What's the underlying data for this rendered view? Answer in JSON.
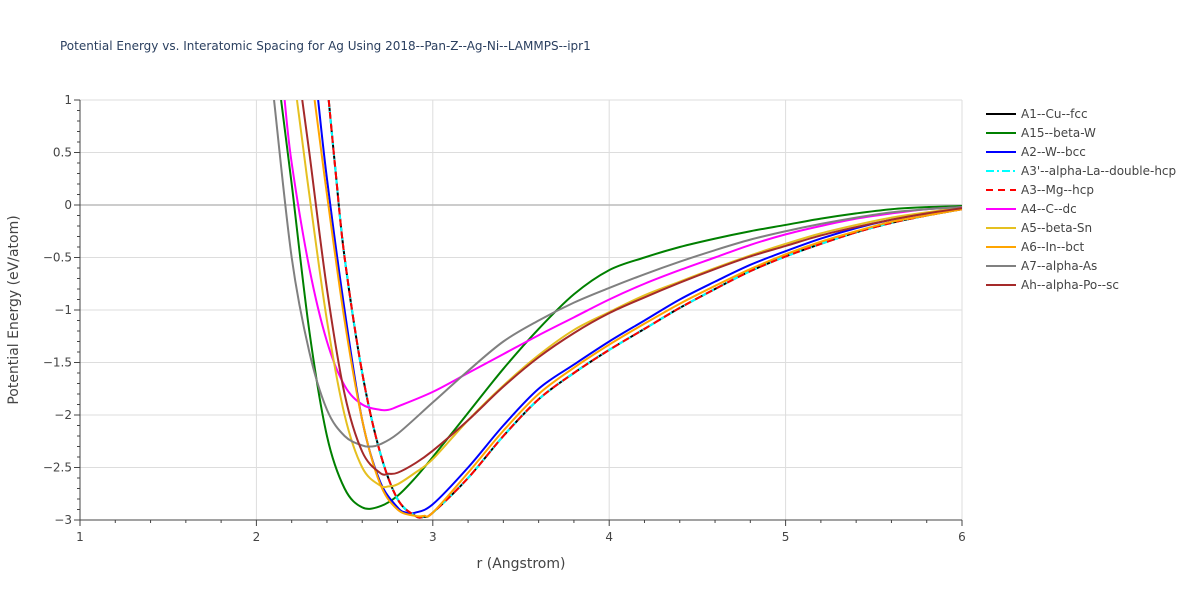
{
  "chart_data": {
    "type": "line",
    "title": "Potential Energy vs. Interatomic Spacing for Ag Using 2018--Pan-Z--Ag-Ni--LAMMPS--ipr1",
    "xlabel": "r (Angstrom)",
    "ylabel": "Potential Energy (eV/atom)",
    "xlim": [
      1,
      6
    ],
    "ylim": [
      -3,
      1
    ],
    "xticks": [
      1,
      2,
      3,
      4,
      5,
      6
    ],
    "xtick_labels": [
      "1",
      "2",
      "3",
      "4",
      "5",
      "6"
    ],
    "yticks": [
      1,
      0.5,
      0,
      -0.5,
      -1,
      -1.5,
      -2,
      -2.5,
      -3
    ],
    "ytick_labels": [
      "1",
      "0.5",
      "0",
      "−0.5",
      "−1",
      "−1.5",
      "−2",
      "−2.5",
      "−3"
    ],
    "grid": true,
    "legend_position": "right",
    "series": [
      {
        "name": "A1--Cu--fcc",
        "color": "#000000",
        "dash": "solid",
        "x": [
          2.41,
          2.45,
          2.5,
          2.6,
          2.7,
          2.8,
          2.9,
          2.95,
          3.0,
          3.2,
          3.4,
          3.6,
          3.8,
          4.0,
          4.2,
          4.4,
          4.6,
          4.8,
          5.0,
          5.2,
          5.4,
          5.6,
          5.8,
          6.0
        ],
        "y": [
          1.0,
          0.3,
          -0.5,
          -1.6,
          -2.35,
          -2.8,
          -2.96,
          -2.97,
          -2.93,
          -2.6,
          -2.2,
          -1.85,
          -1.6,
          -1.38,
          -1.18,
          -0.98,
          -0.8,
          -0.63,
          -0.49,
          -0.37,
          -0.26,
          -0.17,
          -0.1,
          -0.04
        ]
      },
      {
        "name": "A15--beta-W",
        "color": "#008000",
        "dash": "solid",
        "x": [
          2.14,
          2.2,
          2.3,
          2.4,
          2.5,
          2.6,
          2.7,
          2.8,
          2.9,
          3.0,
          3.2,
          3.4,
          3.6,
          3.8,
          4.0,
          4.2,
          4.4,
          4.6,
          4.8,
          5.0,
          5.2,
          5.4,
          5.6,
          5.8,
          6.0
        ],
        "y": [
          1.0,
          0.2,
          -1.2,
          -2.2,
          -2.7,
          -2.88,
          -2.87,
          -2.77,
          -2.6,
          -2.4,
          -1.98,
          -1.56,
          -1.18,
          -0.85,
          -0.62,
          -0.5,
          -0.4,
          -0.32,
          -0.25,
          -0.19,
          -0.13,
          -0.08,
          -0.04,
          -0.02,
          -0.01
        ]
      },
      {
        "name": "A2--W--bcc",
        "color": "#0000ff",
        "dash": "solid",
        "x": [
          2.35,
          2.4,
          2.5,
          2.6,
          2.7,
          2.8,
          2.85,
          2.9,
          3.0,
          3.2,
          3.4,
          3.6,
          3.8,
          4.0,
          4.2,
          4.4,
          4.6,
          4.8,
          5.0,
          5.2,
          5.4,
          5.6,
          5.8,
          6.0
        ],
        "y": [
          1.0,
          0.25,
          -1.0,
          -2.05,
          -2.63,
          -2.88,
          -2.93,
          -2.93,
          -2.85,
          -2.5,
          -2.1,
          -1.75,
          -1.52,
          -1.3,
          -1.1,
          -0.9,
          -0.73,
          -0.57,
          -0.44,
          -0.32,
          -0.22,
          -0.14,
          -0.08,
          -0.03
        ]
      },
      {
        "name": "A3'--alpha-La--double-hcp",
        "color": "#00ffff",
        "dash": "dashdot",
        "x": [
          2.41,
          2.45,
          2.5,
          2.6,
          2.7,
          2.8,
          2.9,
          2.95,
          3.0,
          3.2,
          3.4,
          3.6,
          3.8,
          4.0,
          4.2,
          4.4,
          4.6,
          4.8,
          5.0,
          5.2,
          5.4,
          5.6,
          5.8,
          6.0
        ],
        "y": [
          1.0,
          0.3,
          -0.5,
          -1.6,
          -2.35,
          -2.8,
          -2.96,
          -2.97,
          -2.93,
          -2.6,
          -2.2,
          -1.85,
          -1.6,
          -1.38,
          -1.18,
          -0.98,
          -0.8,
          -0.63,
          -0.49,
          -0.37,
          -0.26,
          -0.17,
          -0.1,
          -0.04
        ]
      },
      {
        "name": "A3--Mg--hcp",
        "color": "#ff0000",
        "dash": "dash",
        "x": [
          2.41,
          2.45,
          2.5,
          2.6,
          2.7,
          2.8,
          2.9,
          2.95,
          3.0,
          3.2,
          3.4,
          3.6,
          3.8,
          4.0,
          4.2,
          4.4,
          4.6,
          4.8,
          5.0,
          5.2,
          5.4,
          5.6,
          5.8,
          6.0
        ],
        "y": [
          1.0,
          0.3,
          -0.5,
          -1.6,
          -2.35,
          -2.8,
          -2.96,
          -2.97,
          -2.93,
          -2.6,
          -2.2,
          -1.85,
          -1.6,
          -1.38,
          -1.18,
          -0.98,
          -0.8,
          -0.63,
          -0.49,
          -0.37,
          -0.26,
          -0.17,
          -0.1,
          -0.04
        ]
      },
      {
        "name": "A4--C--dc",
        "color": "#ff00ff",
        "dash": "solid",
        "x": [
          2.16,
          2.2,
          2.3,
          2.4,
          2.5,
          2.6,
          2.7,
          2.75,
          2.8,
          3.0,
          3.2,
          3.4,
          3.6,
          3.8,
          4.0,
          4.2,
          4.4,
          4.6,
          4.8,
          5.0,
          5.2,
          5.4,
          5.6,
          5.8,
          6.0
        ],
        "y": [
          1.0,
          0.4,
          -0.6,
          -1.3,
          -1.72,
          -1.9,
          -1.95,
          -1.95,
          -1.92,
          -1.78,
          -1.6,
          -1.42,
          -1.24,
          -1.07,
          -0.9,
          -0.75,
          -0.62,
          -0.5,
          -0.38,
          -0.28,
          -0.2,
          -0.13,
          -0.08,
          -0.04,
          -0.02
        ]
      },
      {
        "name": "A5--beta-Sn",
        "color": "#e5c020",
        "dash": "solid",
        "x": [
          2.23,
          2.3,
          2.4,
          2.5,
          2.6,
          2.7,
          2.75,
          2.8,
          2.9,
          3.0,
          3.2,
          3.4,
          3.6,
          3.8,
          4.0,
          4.2,
          4.4,
          4.6,
          4.8,
          5.0,
          5.2,
          5.4,
          5.6,
          5.8,
          6.0
        ],
        "y": [
          1.0,
          0.1,
          -1.1,
          -2.0,
          -2.5,
          -2.67,
          -2.68,
          -2.66,
          -2.55,
          -2.42,
          -2.05,
          -1.72,
          -1.43,
          -1.19,
          -1.02,
          -0.86,
          -0.73,
          -0.6,
          -0.48,
          -0.37,
          -0.27,
          -0.19,
          -0.12,
          -0.07,
          -0.03
        ]
      },
      {
        "name": "A6--In--bct",
        "color": "#ffa500",
        "dash": "solid",
        "x": [
          2.33,
          2.4,
          2.5,
          2.6,
          2.7,
          2.8,
          2.9,
          2.95,
          3.0,
          3.2,
          3.4,
          3.6,
          3.8,
          4.0,
          4.2,
          4.4,
          4.6,
          4.8,
          5.0,
          5.2,
          5.4,
          5.6,
          5.8,
          6.0
        ],
        "y": [
          1.0,
          0.1,
          -1.1,
          -2.05,
          -2.65,
          -2.9,
          -2.96,
          -2.96,
          -2.93,
          -2.55,
          -2.15,
          -1.8,
          -1.55,
          -1.33,
          -1.13,
          -0.94,
          -0.77,
          -0.61,
          -0.47,
          -0.35,
          -0.25,
          -0.16,
          -0.1,
          -0.04
        ]
      },
      {
        "name": "A7--alpha-As",
        "color": "#808080",
        "dash": "solid",
        "x": [
          2.1,
          2.2,
          2.3,
          2.4,
          2.5,
          2.6,
          2.65,
          2.7,
          2.8,
          3.0,
          3.2,
          3.4,
          3.6,
          3.8,
          4.0,
          4.2,
          4.4,
          4.6,
          4.8,
          5.0,
          5.2,
          5.4,
          5.6,
          5.8,
          6.0
        ],
        "y": [
          1.0,
          -0.5,
          -1.4,
          -1.95,
          -2.2,
          -2.29,
          -2.3,
          -2.28,
          -2.18,
          -1.88,
          -1.58,
          -1.3,
          -1.1,
          -0.93,
          -0.79,
          -0.66,
          -0.54,
          -0.43,
          -0.33,
          -0.25,
          -0.18,
          -0.12,
          -0.07,
          -0.04,
          -0.02
        ]
      },
      {
        "name": "Ah--alpha-Po--sc",
        "color": "#a52a2a",
        "dash": "solid",
        "x": [
          2.26,
          2.3,
          2.4,
          2.5,
          2.6,
          2.7,
          2.75,
          2.8,
          2.9,
          3.0,
          3.2,
          3.4,
          3.6,
          3.8,
          4.0,
          4.2,
          4.4,
          4.6,
          4.8,
          5.0,
          5.2,
          5.4,
          5.6,
          5.8,
          6.0
        ],
        "y": [
          1.0,
          0.5,
          -0.8,
          -1.8,
          -2.35,
          -2.55,
          -2.56,
          -2.55,
          -2.46,
          -2.34,
          -2.05,
          -1.73,
          -1.45,
          -1.22,
          -1.03,
          -0.88,
          -0.74,
          -0.61,
          -0.49,
          -0.39,
          -0.29,
          -0.21,
          -0.14,
          -0.08,
          -0.03
        ]
      }
    ]
  }
}
